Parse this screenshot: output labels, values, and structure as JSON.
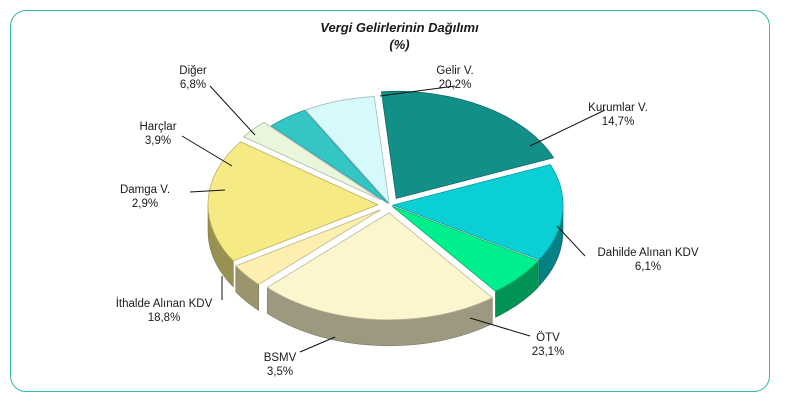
{
  "chart_data": {
    "type": "pie",
    "title": "Vergi Gelirlerinin Dağılımı",
    "subtitle": "(%)",
    "slices": [
      {
        "label": "Gelir V.",
        "value": 20.2,
        "value_label": "20,2%",
        "color": "#128f87",
        "exploded": true
      },
      {
        "label": "Kurumlar V.",
        "value": 14.7,
        "value_label": "14,7%",
        "color": "#0ad0d6",
        "exploded": false
      },
      {
        "label": "Dahilde Alınan KDV",
        "value": 6.1,
        "value_label": "6,1%",
        "color": "#00ef8d",
        "exploded": false
      },
      {
        "label": "ÖTV",
        "value": 23.1,
        "value_label": "23,1%",
        "color": "#fcf6cf",
        "exploded": true
      },
      {
        "label": "BSMV",
        "value": 3.5,
        "value_label": "3,5%",
        "color": "#fcefb0",
        "exploded": true
      },
      {
        "label": "İthalde Alınan KDV",
        "value": 18.8,
        "value_label": "18,8%",
        "color": "#f6ea85",
        "exploded": true
      },
      {
        "label": "Damga V.",
        "value": 2.9,
        "value_label": "2,9%",
        "color": "#eaf6dc",
        "exploded": true
      },
      {
        "label": "Harçlar",
        "value": 3.9,
        "value_label": "3,9%",
        "color": "#34c5c5",
        "exploded": false
      },
      {
        "label": "Diğer",
        "value": 6.8,
        "value_label": "6,8%",
        "color": "#d6fafb",
        "exploded": false
      }
    ]
  }
}
